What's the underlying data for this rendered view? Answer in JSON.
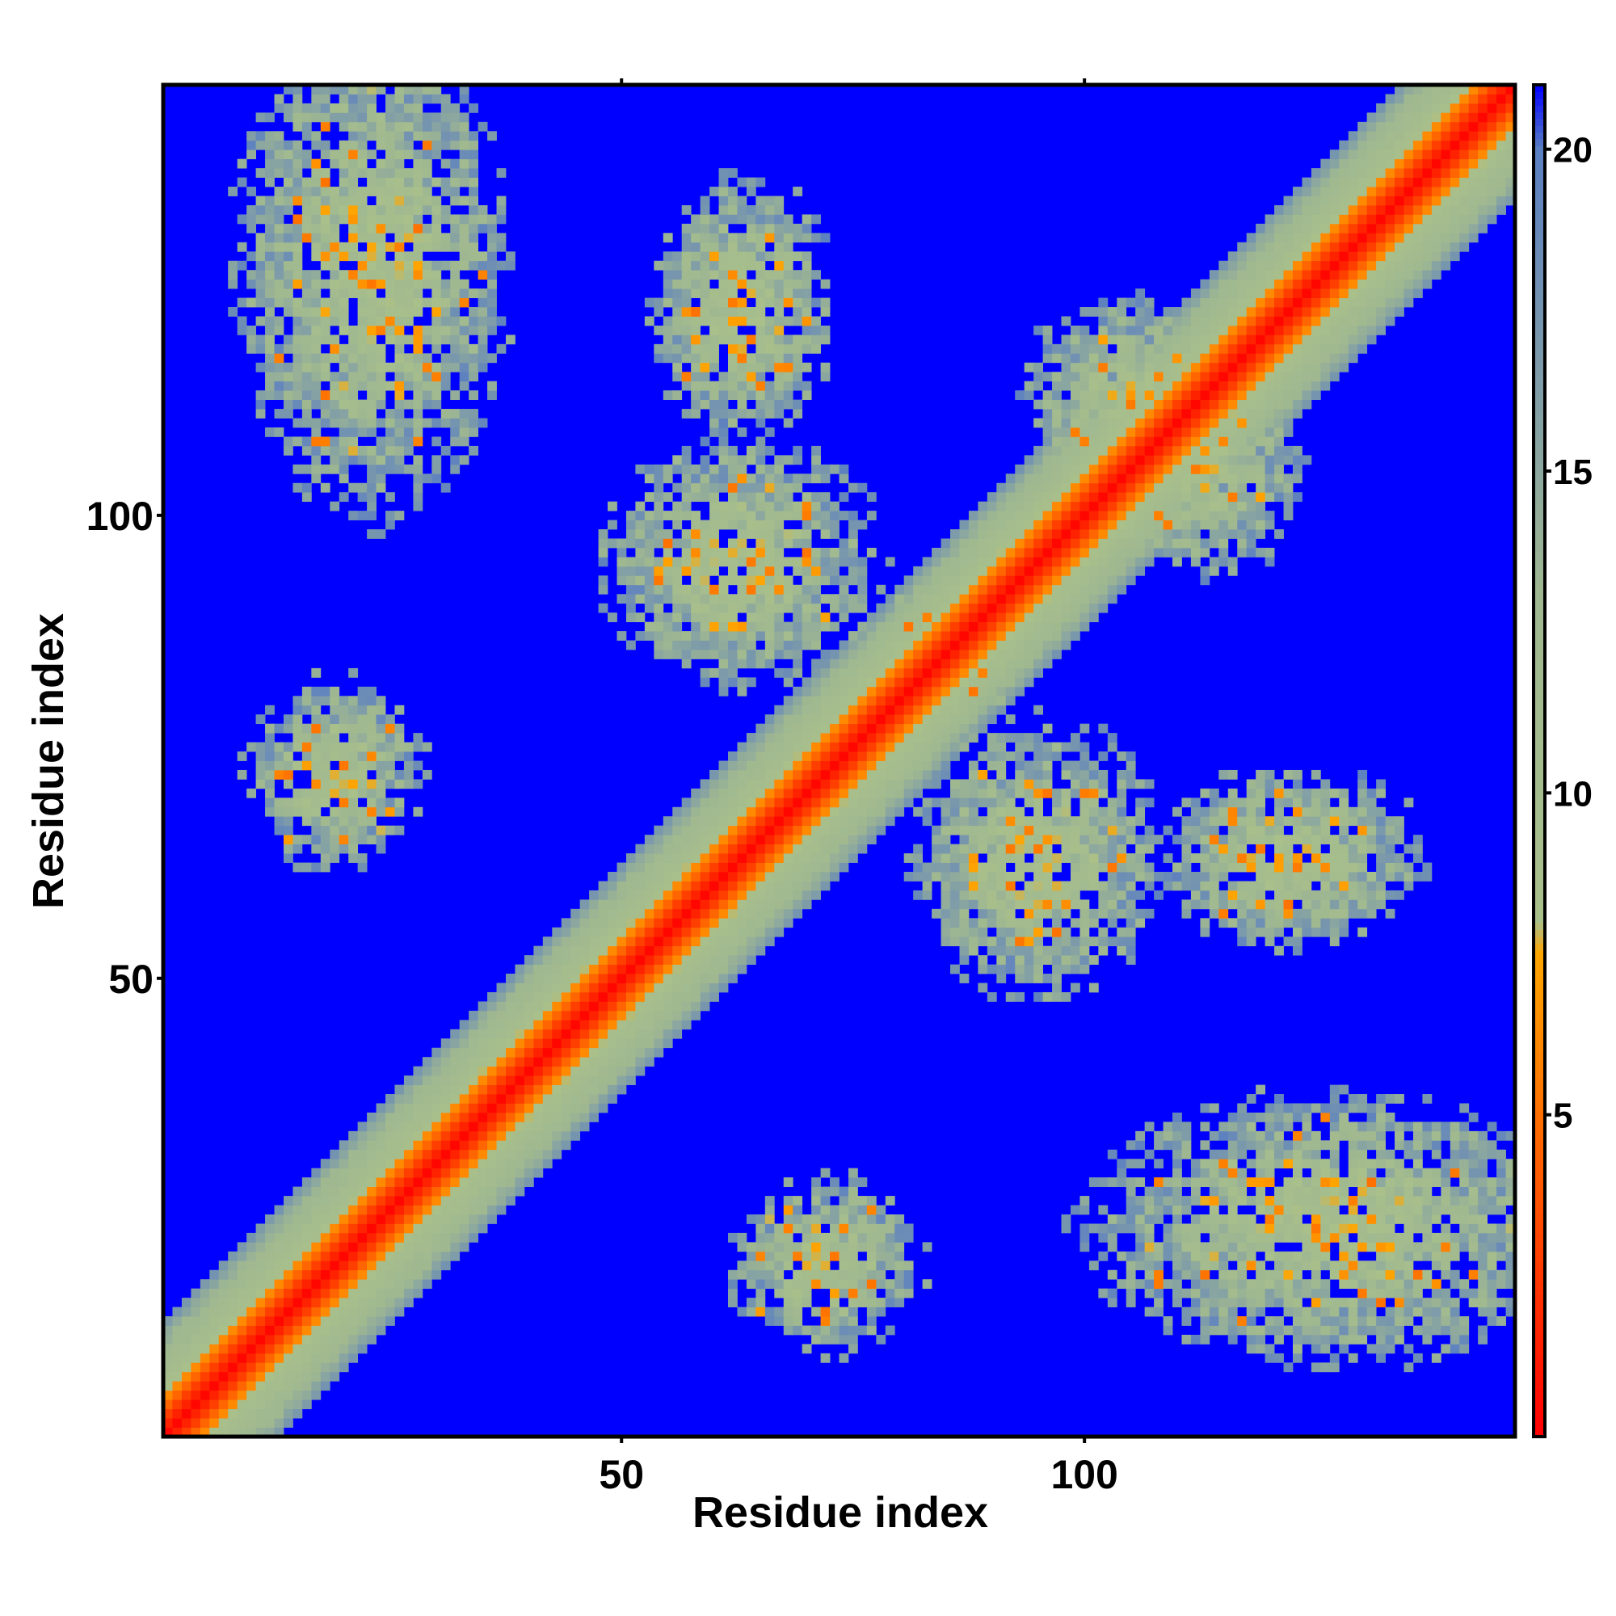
{
  "chart_data": {
    "type": "heatmap",
    "description_of_data": "",
    "xlabel": "Residue index",
    "ylabel": "Residue index",
    "n_residues": 146,
    "xlim": [
      0.5,
      146.5
    ],
    "ylim": [
      0.5,
      146.5
    ],
    "x_ticks": [
      50,
      100
    ],
    "y_ticks": [
      50,
      100
    ],
    "colorbar": {
      "range": [
        0,
        21
      ],
      "ticks": [
        5,
        10,
        15,
        20
      ],
      "stops": [
        {
          "value": 0,
          "color": "#ff0000"
        },
        {
          "value": 4,
          "color": "#ff5a00"
        },
        {
          "value": 7.5,
          "color": "#ffa500"
        },
        {
          "value": 8,
          "color": "#a9c08b"
        },
        {
          "value": 13,
          "color": "#a0b890"
        },
        {
          "value": 20,
          "color": "#5b7fc2"
        },
        {
          "value": 21,
          "color": "#0000ff"
        }
      ],
      "cutoff_color": "#0000ff"
    },
    "diagonal": {
      "offsets": [
        {
          "d": 0,
          "value": 0.3
        },
        {
          "d": 1,
          "value": 1.5
        },
        {
          "d": 2,
          "value": 2.8
        },
        {
          "d": 3,
          "value": 4.5
        },
        {
          "d": 4,
          "value": 6.2
        },
        {
          "d": 5,
          "value": 8.5
        },
        {
          "d": 6,
          "value": 10
        },
        {
          "d": 7,
          "value": 11
        },
        {
          "d": 8,
          "value": 11.8
        },
        {
          "d": 9,
          "value": 12.5
        },
        {
          "d": 10,
          "value": 13.5
        },
        {
          "d": 11,
          "value": 15
        },
        {
          "d": 12,
          "value": 17
        }
      ]
    },
    "contact_regions": [
      {
        "center_i": 23,
        "center_j": 127,
        "radius_i": 14,
        "radius_j": 25
      },
      {
        "center_i": 19,
        "center_j": 72,
        "radius_i": 9,
        "radius_j": 10
      },
      {
        "center_i": 63,
        "center_j": 122,
        "radius_i": 9,
        "radius_j": 14
      },
      {
        "center_i": 63,
        "center_j": 95,
        "radius_i": 14,
        "radius_j": 13
      },
      {
        "center_i": 105,
        "center_j": 113,
        "radius_i": 11,
        "radius_j": 10
      },
      {
        "center_i": 86,
        "center_j": 86,
        "radius_i": 8,
        "radius_j": 8
      },
      {
        "center_i": 45,
        "center_j": 45,
        "radius_i": 5,
        "radius_j": 5
      }
    ]
  }
}
